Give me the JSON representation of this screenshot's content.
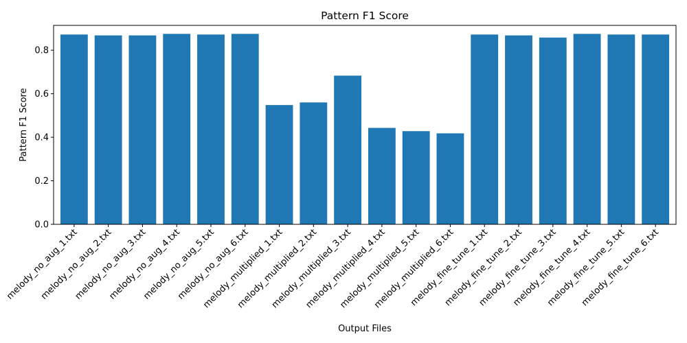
{
  "chart_data": {
    "type": "bar",
    "title": "Pattern F1 Score",
    "xlabel": "Output Files",
    "ylabel": "Pattern F1 Score",
    "ylim": [
      0,
      0.914
    ],
    "yticks": [
      0.0,
      0.2,
      0.4,
      0.6,
      0.8
    ],
    "ytick_labels": [
      "0.0",
      "0.2",
      "0.4",
      "0.6",
      "0.8"
    ],
    "grid": false,
    "bar_color": "#1f77b4",
    "categories": [
      "melody_no_aug_1.txt",
      "melody_no_aug_2.txt",
      "melody_no_aug_3.txt",
      "melody_no_aug_4.txt",
      "melody_no_aug_5.txt",
      "melody_no_aug_6.txt",
      "melody_multiplied_1.txt",
      "melody_multiplied_2.txt",
      "melody_multiplied_3.txt",
      "melody_multiplied_4.txt",
      "melody_multiplied_5.txt",
      "melody_multiplied_6.txt",
      "melody_fine_tune_1.txt",
      "melody_fine_tune_2.txt",
      "melody_fine_tune_3.txt",
      "melody_fine_tune_4.txt",
      "melody_fine_tune_5.txt",
      "melody_fine_tune_6.txt"
    ],
    "values": [
      0.872,
      0.868,
      0.868,
      0.875,
      0.872,
      0.875,
      0.548,
      0.56,
      0.683,
      0.443,
      0.428,
      0.418,
      0.872,
      0.868,
      0.858,
      0.875,
      0.872,
      0.872
    ]
  }
}
